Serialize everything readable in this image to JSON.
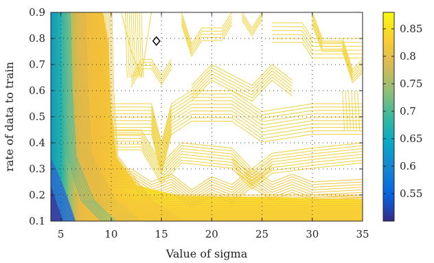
{
  "chart_data": {
    "type": "contour",
    "title": "",
    "xlabel": "Value of sigma",
    "ylabel": "rate of data to train",
    "xlim": [
      4,
      35
    ],
    "ylim": [
      0.1,
      0.9
    ],
    "x_ticks": [
      5,
      10,
      15,
      20,
      25,
      30,
      35
    ],
    "y_ticks": [
      0.1,
      0.2,
      0.3,
      0.4,
      0.5,
      0.6,
      0.7,
      0.8,
      0.9
    ],
    "grid": true,
    "colorbar": {
      "range": [
        0.5,
        0.88
      ],
      "ticks": [
        0.55,
        0.6,
        0.65,
        0.7,
        0.75,
        0.8,
        0.85
      ],
      "colormap": "parula",
      "stops": [
        "#352a87",
        "#0363e1",
        "#1485d4",
        "#06a7c6",
        "#38b99e",
        "#92bf73",
        "#d9ba56",
        "#fcce2e",
        "#f9fb0e"
      ]
    },
    "optimum_marker": {
      "x": 14.5,
      "y": 0.79,
      "symbol": "diamond"
    },
    "plateau_level": 0.86,
    "region_levels": [
      {
        "x_range": [
          4,
          5.5
        ],
        "accuracy_range": [
          0.5,
          0.7
        ]
      },
      {
        "x_range": [
          5.5,
          10
        ],
        "accuracy_range": [
          0.7,
          0.82
        ]
      },
      {
        "x_range": [
          10,
          35
        ],
        "accuracy_range": [
          0.84,
          0.88
        ]
      }
    ]
  }
}
